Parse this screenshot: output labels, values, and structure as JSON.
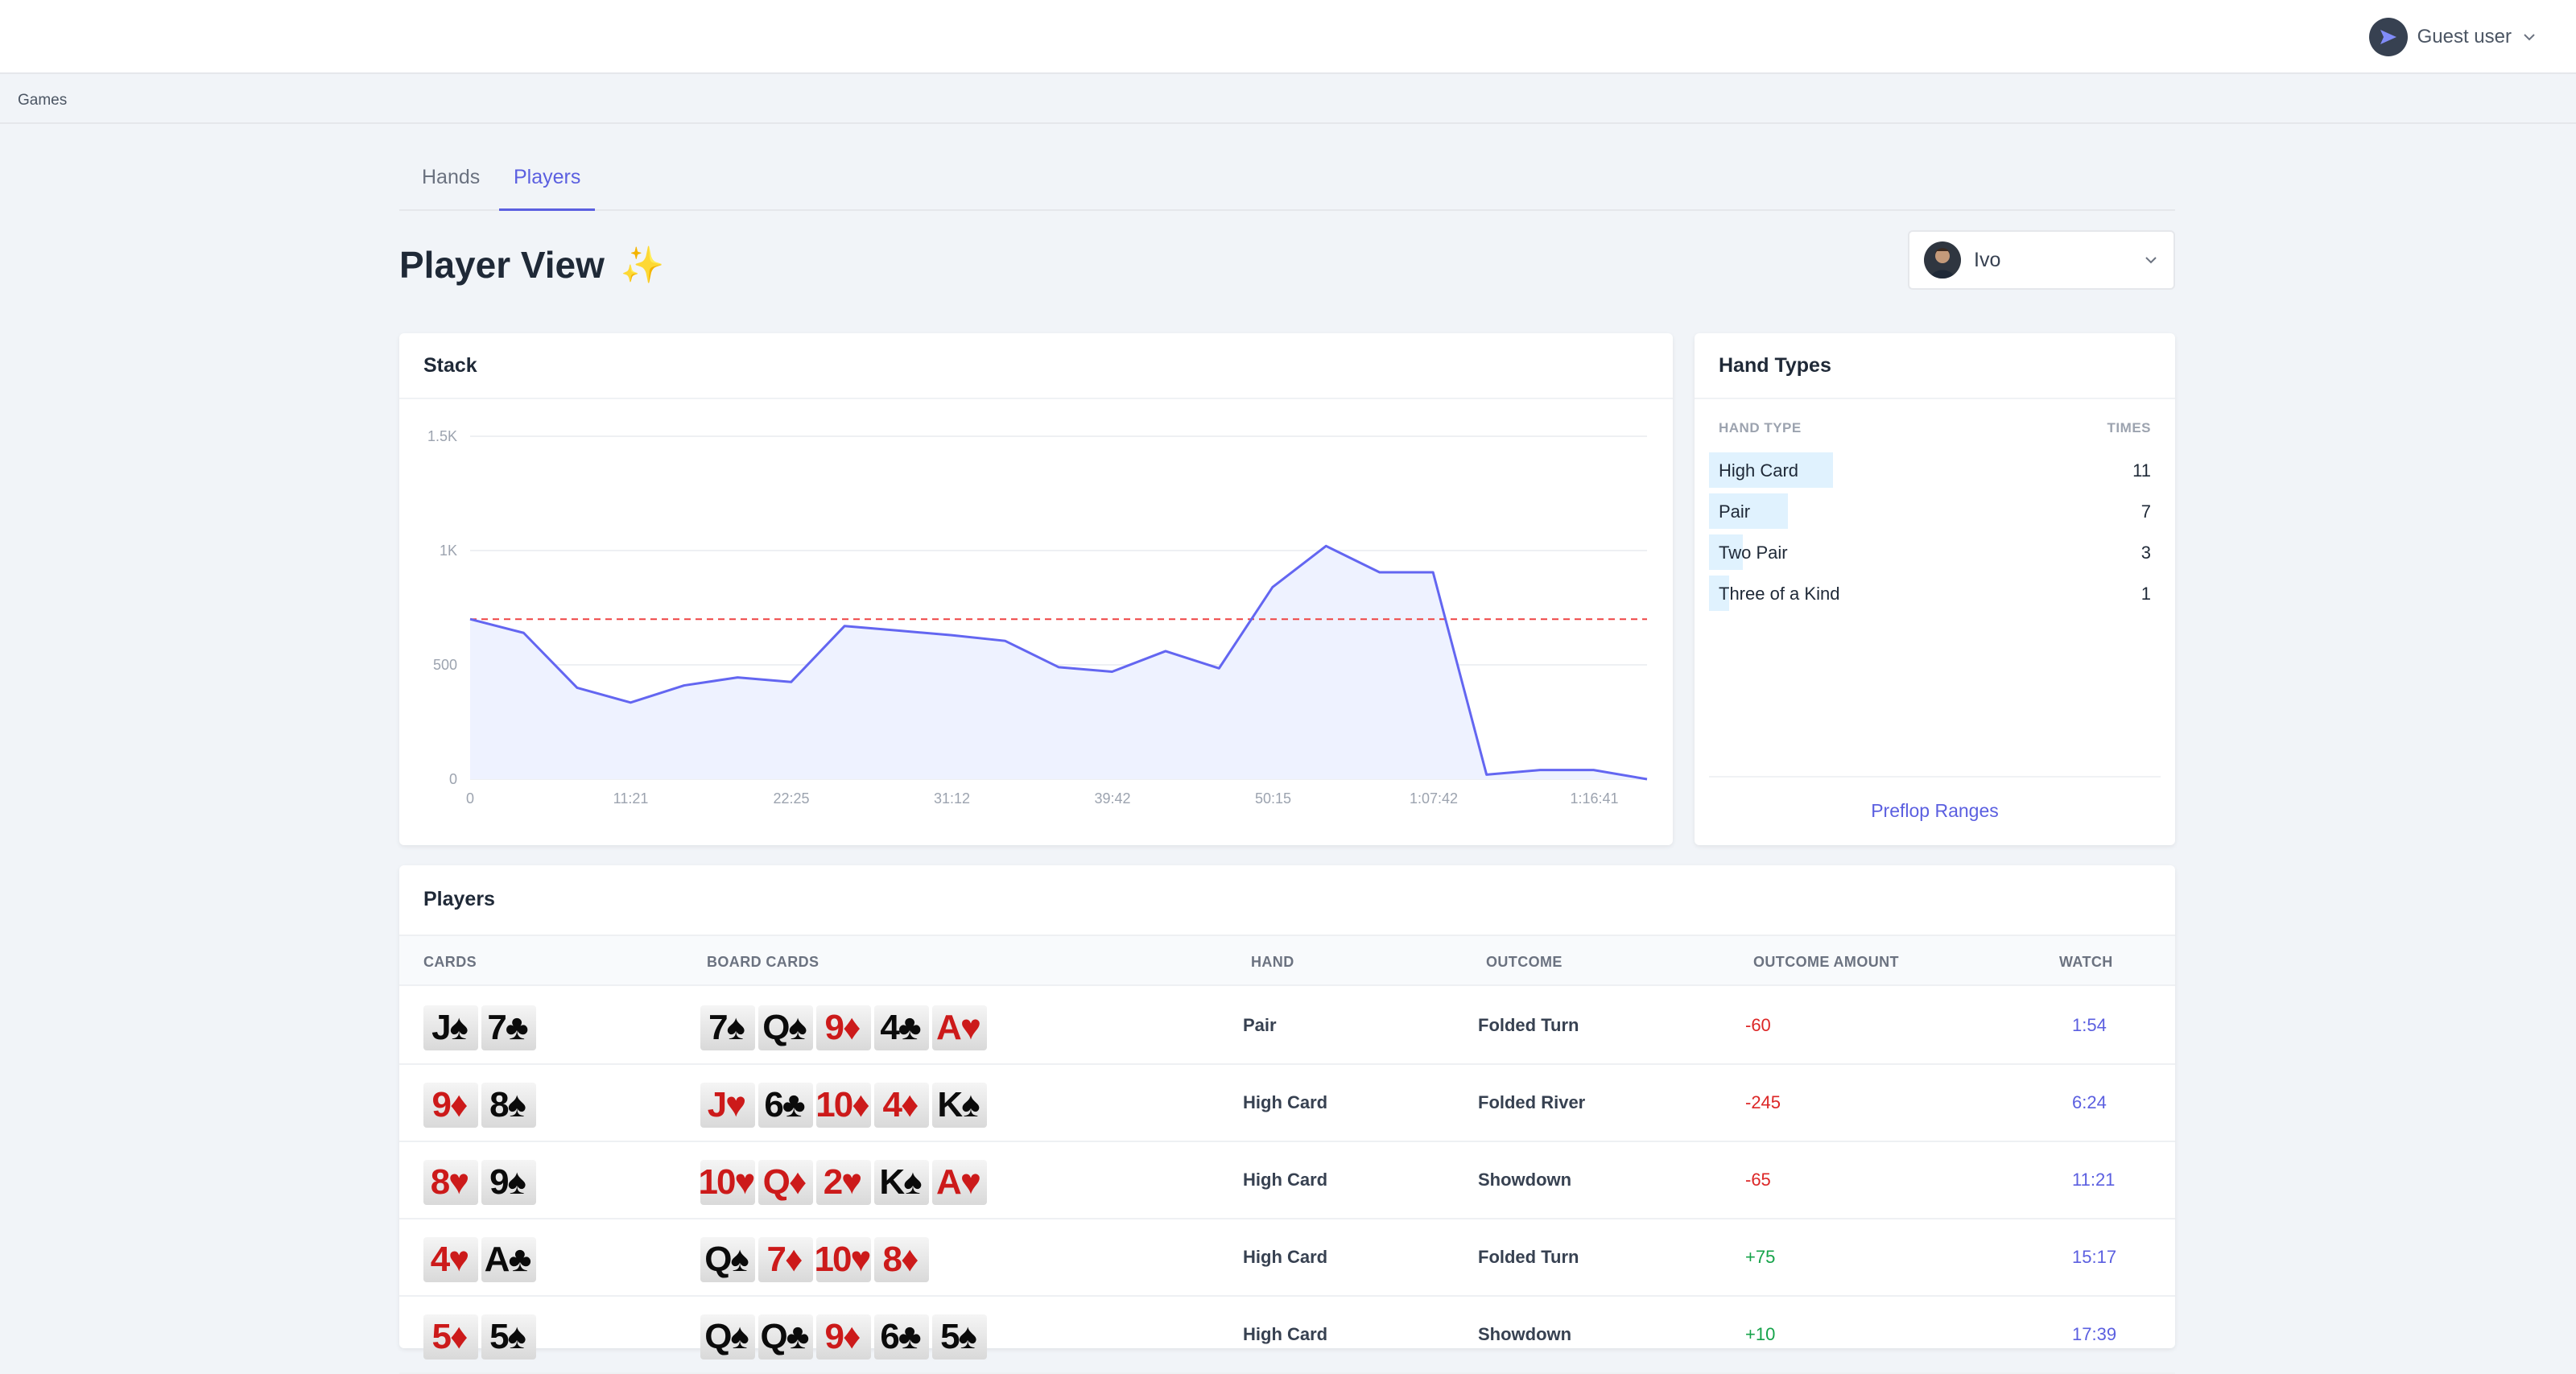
{
  "header": {
    "user_label": "Guest user"
  },
  "breadcrumb": {
    "label": "Games"
  },
  "tabs": [
    {
      "label": "Hands"
    },
    {
      "label": "Players"
    }
  ],
  "page": {
    "title": "Player View",
    "title_emoji": "✨"
  },
  "player_select": {
    "value": "Ivo"
  },
  "stack_panel": {
    "title": "Stack"
  },
  "chart_data": {
    "type": "line",
    "title": "",
    "x_tick_labels": [
      "0",
      "11:21",
      "22:25",
      "31:12",
      "39:42",
      "50:15",
      "1:07:42",
      "1:16:41"
    ],
    "y_tick_labels": [
      "0",
      "500",
      "1K",
      "1.5K"
    ],
    "ylim": [
      0,
      1500
    ],
    "grid": true,
    "x": [
      0,
      1,
      2,
      3,
      4,
      5,
      6,
      7,
      8,
      9,
      10,
      11,
      12,
      13,
      14,
      15,
      16,
      17,
      18,
      19,
      20,
      21,
      22
    ],
    "series": [
      {
        "values": [
          700,
          640,
          400,
          335,
          410,
          445,
          425,
          670,
          650,
          630,
          605,
          490,
          470,
          560,
          485,
          840,
          1020,
          905,
          905,
          20,
          40,
          40,
          0
        ]
      }
    ],
    "reference_line": {
      "y": 700,
      "color": "#ef4444",
      "style": "dashed"
    },
    "line_color": "#6366f1",
    "fill_color": "#eef2ff"
  },
  "hand_types": {
    "title": "Hand Types",
    "col_type": "HAND TYPE",
    "col_times": "TIMES",
    "rows": [
      {
        "label": "High Card",
        "count": "11",
        "value": 11
      },
      {
        "label": "Pair",
        "count": "7",
        "value": 7
      },
      {
        "label": "Two Pair",
        "count": "3",
        "value": 3
      },
      {
        "label": "Three of a Kind",
        "count": "1",
        "value": 1
      }
    ],
    "max_value": 40,
    "link": "Preflop Ranges"
  },
  "players_table": {
    "title": "Players",
    "columns": [
      "CARDS",
      "BOARD CARDS",
      "HAND",
      "OUTCOME",
      "OUTCOME AMOUNT",
      "WATCH"
    ],
    "rows": [
      {
        "cards": [
          "J♠",
          "7♣"
        ],
        "board": [
          "7♠",
          "Q♠",
          "9♦",
          "4♣",
          "A♥"
        ],
        "hand": "Pair",
        "outcome": "Folded Turn",
        "amount": "-60",
        "watch": "1:54"
      },
      {
        "cards": [
          "9♦",
          "8♠"
        ],
        "board": [
          "J♥",
          "6♣",
          "10♦",
          "4♦",
          "K♠"
        ],
        "hand": "High Card",
        "outcome": "Folded River",
        "amount": "-245",
        "watch": "6:24"
      },
      {
        "cards": [
          "8♥",
          "9♠"
        ],
        "board": [
          "10♥",
          "Q♦",
          "2♥",
          "K♠",
          "A♥"
        ],
        "hand": "High Card",
        "outcome": "Showdown",
        "amount": "-65",
        "watch": "11:21"
      },
      {
        "cards": [
          "4♥",
          "A♣"
        ],
        "board": [
          "Q♠",
          "7♦",
          "10♥",
          "8♦"
        ],
        "hand": "High Card",
        "outcome": "Folded Turn",
        "amount": "+75",
        "watch": "15:17"
      },
      {
        "cards": [
          "5♦",
          "5♠"
        ],
        "board": [
          "Q♠",
          "Q♣",
          "9♦",
          "6♣",
          "5♠"
        ],
        "hand": "High Card",
        "outcome": "Showdown",
        "amount": "+10",
        "watch": "17:39"
      }
    ]
  }
}
